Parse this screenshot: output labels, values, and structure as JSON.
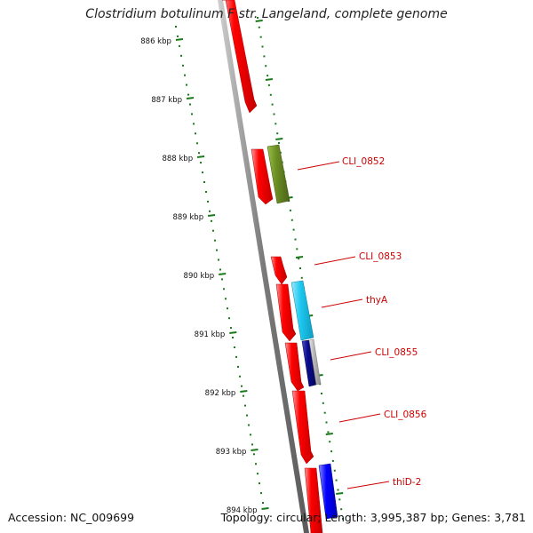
{
  "title": "Clostridium botulinum F str. Langeland, complete genome",
  "footer": {
    "accession": "Accession: NC_009699",
    "topology": "Topology: circular; Length: 3,995,387 bp; Genes: 3,781"
  },
  "axis_ticks": [
    "886 kbp",
    "887 kbp",
    "888 kbp",
    "889 kbp",
    "890 kbp",
    "891 kbp",
    "892 kbp",
    "893 kbp",
    "894 kbp"
  ],
  "gene_labels": [
    "CLI_0852",
    "CLI_0853",
    "thyA",
    "CLI_0855",
    "CLI_0856",
    "thiD-2"
  ],
  "colors": {
    "orf_red": "#ff0000",
    "gene_olive": "#6b8e23",
    "gene_cyan": "#1ec8f0",
    "gene_navy": "#0a0a8c",
    "gene_gray": "#b8b8b8",
    "gene_blue": "#0000ff",
    "label_red": "#cc0000",
    "tick_green": "#1a7a1a",
    "backbone_gray": "#8a8a8a"
  }
}
